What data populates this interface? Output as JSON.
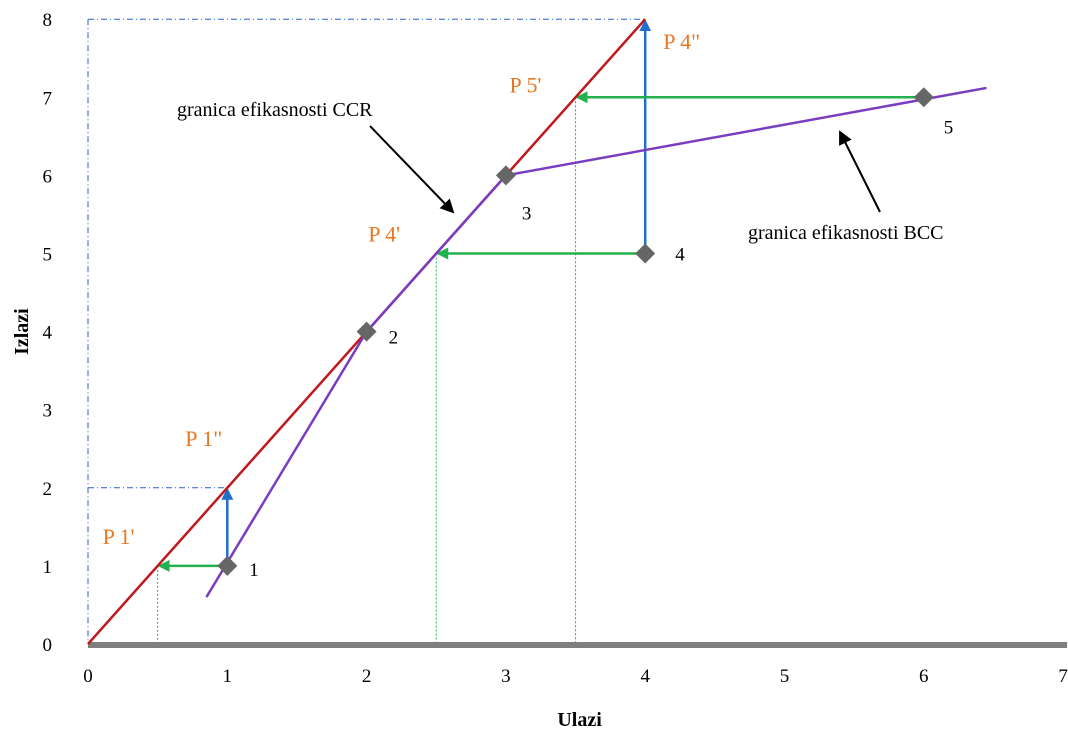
{
  "chart_data": {
    "type": "line",
    "xlabel": "Ulazi",
    "ylabel": "Izlazi",
    "xlim": [
      0,
      7
    ],
    "ylim": [
      0,
      8
    ],
    "x_ticks": [
      "0",
      "1",
      "2",
      "3",
      "4",
      "5",
      "6",
      "7"
    ],
    "y_ticks": [
      "0",
      "1",
      "2",
      "3",
      "4",
      "5",
      "6",
      "7",
      "8"
    ],
    "grid": false,
    "colors": {
      "ccr": "#c0181c",
      "bcc": "#7a3cc0",
      "points": "#666666",
      "input_projection": "#22b14c",
      "output_projection": "#1f6fd0",
      "guide_blue": "#2a62c9",
      "guide_green": "#22b14c",
      "projection_labels": "#e87722",
      "x_axis": "#7f7f7f"
    },
    "series": [
      {
        "name": "granica efikasnosti CCR",
        "x": [
          0,
          4
        ],
        "y": [
          0,
          8
        ]
      },
      {
        "name": "granica efikasnosti BCC",
        "x": [
          0.85,
          2,
          3,
          6.45
        ],
        "y": [
          0.6,
          4,
          6,
          7.12
        ]
      }
    ],
    "points": [
      {
        "label": "1",
        "x": 1,
        "y": 1
      },
      {
        "label": "2",
        "x": 2,
        "y": 4
      },
      {
        "label": "3",
        "x": 3,
        "y": 6
      },
      {
        "label": "4",
        "x": 4,
        "y": 5
      },
      {
        "label": "5",
        "x": 6,
        "y": 7
      }
    ],
    "projections": [
      {
        "label": "P 1'",
        "x": 0.5,
        "y": 1,
        "from": [
          1,
          1
        ],
        "orientation": "input"
      },
      {
        "label": "P 1\"",
        "x": 1,
        "y": 2,
        "from": [
          1,
          1
        ],
        "orientation": "output"
      },
      {
        "label": "P 4'",
        "x": 2.5,
        "y": 5,
        "from": [
          4,
          5
        ],
        "orientation": "input"
      },
      {
        "label": "P 4\"",
        "x": 4,
        "y": 8,
        "from": [
          4,
          5
        ],
        "orientation": "output"
      },
      {
        "label": "P 5'",
        "x": 3.5,
        "y": 7,
        "from": [
          6,
          7
        ],
        "orientation": "input"
      }
    ],
    "annotations": [
      {
        "text": "granica efikasnosti CCR",
        "points_to": "ccr"
      },
      {
        "text": "granica efikasnosti BCC",
        "points_to": "bcc"
      }
    ]
  }
}
